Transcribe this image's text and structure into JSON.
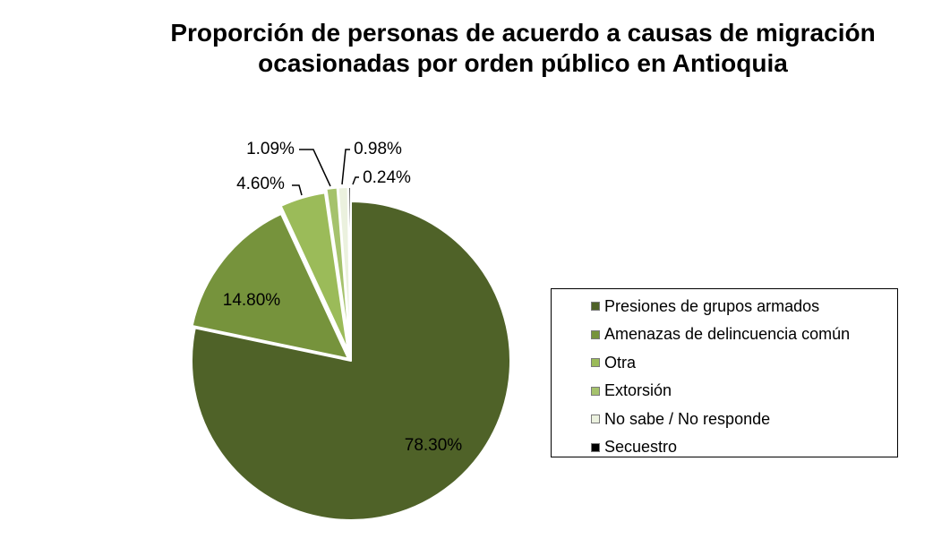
{
  "chart_data": {
    "type": "pie",
    "title_lines": [
      "Proporción de personas de acuerdo a causas de migración",
      "ocasionadas por orden público en Antioquia"
    ],
    "slices": [
      {
        "label": "Presiones de grupos armados",
        "value": 78.3,
        "value_label": "78.30%",
        "color": "#4f6228"
      },
      {
        "label": "Amenazas de delincuencia común",
        "value": 14.8,
        "value_label": "14.80%",
        "color": "#76933c"
      },
      {
        "label": "Otra",
        "value": 4.6,
        "value_label": "4.60%",
        "color": "#9bbb59"
      },
      {
        "label": "Extorsión",
        "value": 1.09,
        "value_label": "1.09%",
        "color": "#a5c26c"
      },
      {
        "label": "No sabe / No responde",
        "value": 0.98,
        "value_label": "0.98%",
        "color": "#ebf1de"
      },
      {
        "label": "Secuestro",
        "value": 0.24,
        "value_label": "0.24%",
        "color": "#000000"
      }
    ],
    "legend_position": "right",
    "start_angle": "top, clockwise",
    "exploded": true
  }
}
